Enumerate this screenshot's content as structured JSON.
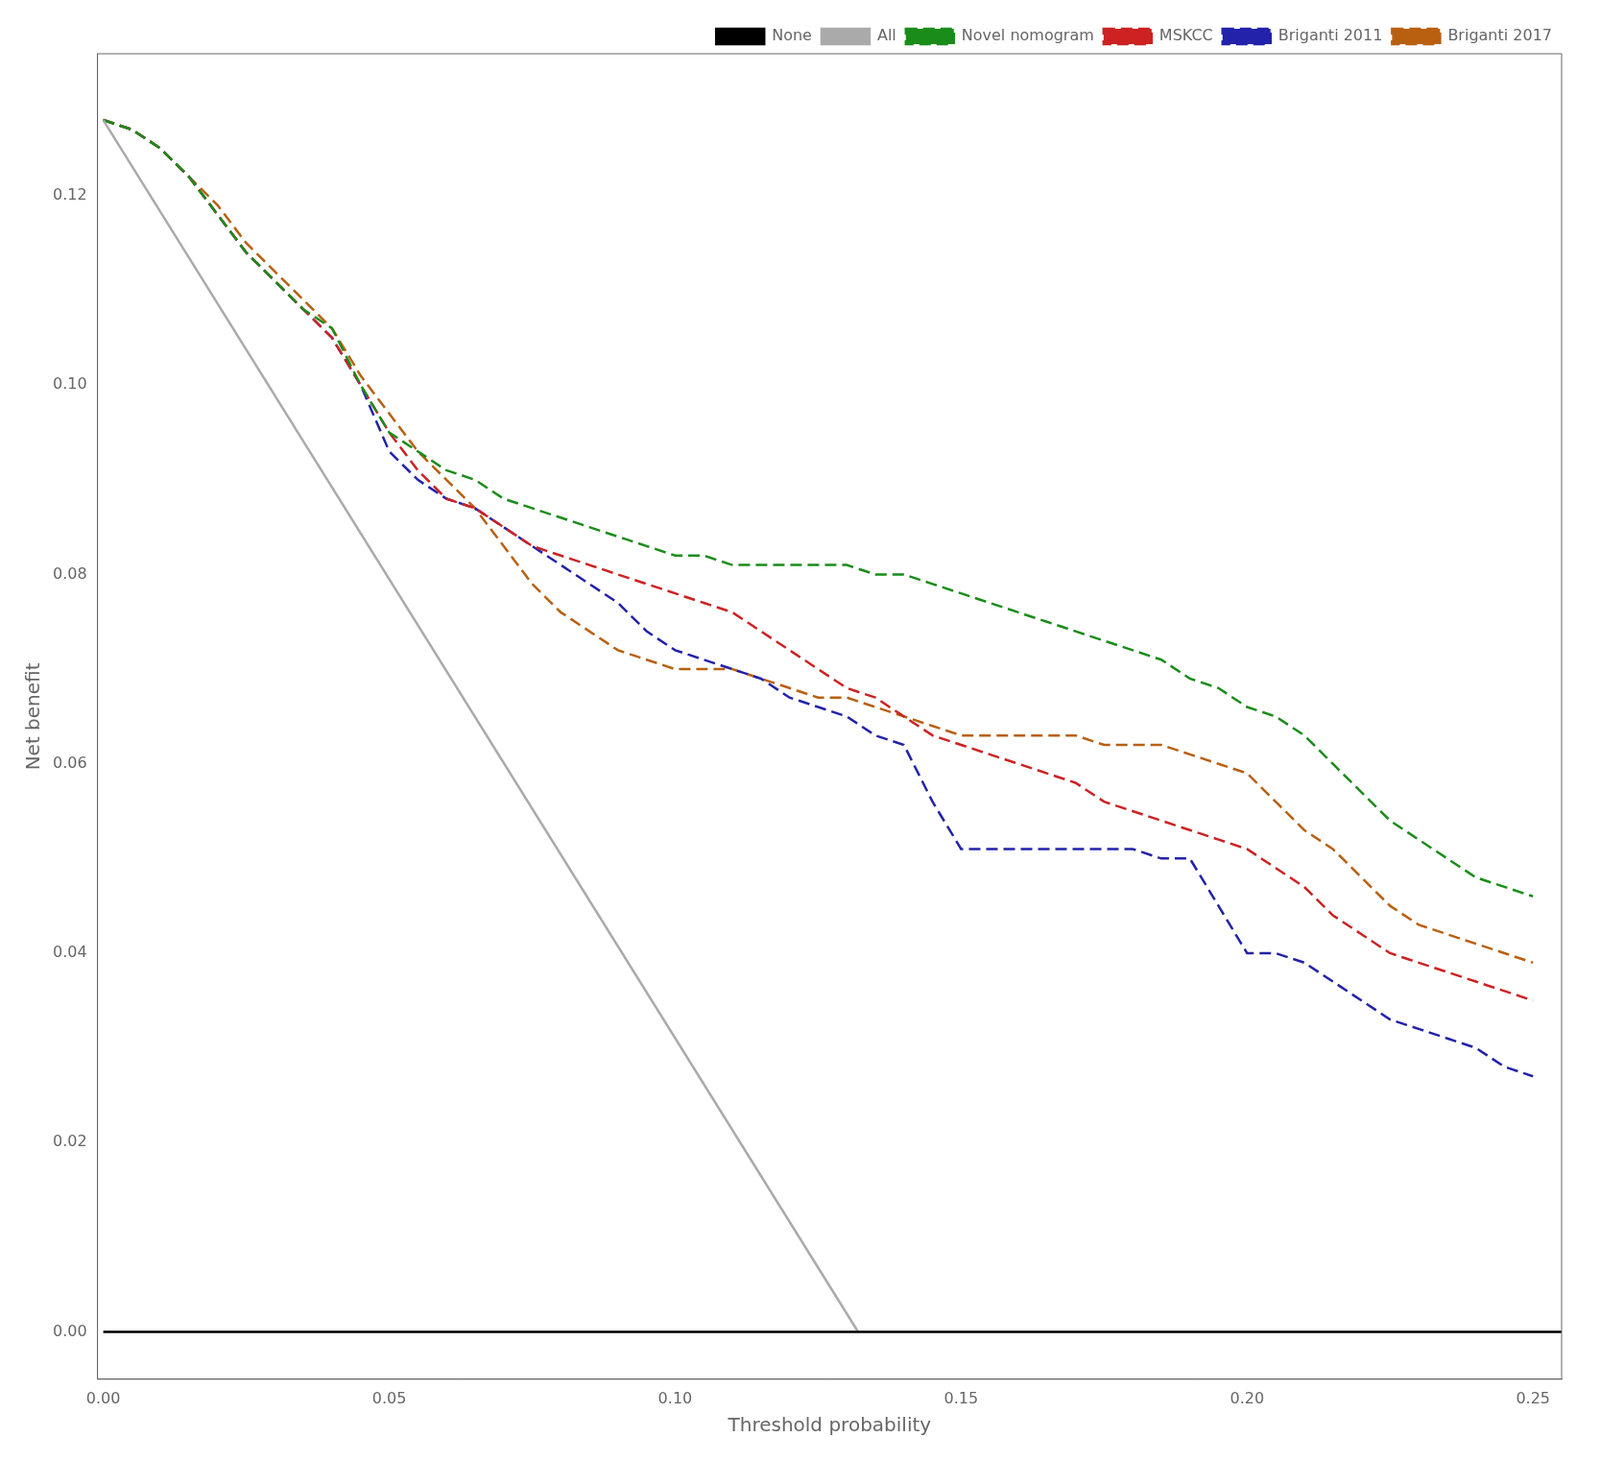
{
  "chart_data": {
    "type": "line",
    "xlabel": "Threshold probability",
    "ylabel": "Net benefit",
    "xlim": [
      -0.001,
      0.255
    ],
    "ylim": [
      -0.005,
      0.135
    ],
    "xticks": [
      {
        "value": 0.0,
        "label": "0.00"
      },
      {
        "value": 0.05,
        "label": "0.05"
      },
      {
        "value": 0.1,
        "label": "0.10"
      },
      {
        "value": 0.15,
        "label": "0.15"
      },
      {
        "value": 0.2,
        "label": "0.20"
      },
      {
        "value": 0.25,
        "label": "0.25"
      }
    ],
    "yticks": [
      {
        "value": 0.0,
        "label": "0.00"
      },
      {
        "value": 0.02,
        "label": "0.02"
      },
      {
        "value": 0.04,
        "label": "0.04"
      },
      {
        "value": 0.06,
        "label": "0.06"
      },
      {
        "value": 0.08,
        "label": "0.08"
      },
      {
        "value": 0.1,
        "label": "0.10"
      },
      {
        "value": 0.12,
        "label": "0.12"
      }
    ],
    "grid": false,
    "legend": "upper right",
    "series": [
      {
        "name": "None",
        "color": "#000000",
        "line_style": "solid",
        "x": [
          0.0,
          0.255
        ],
        "values": [
          0.0,
          0.0
        ]
      },
      {
        "name": "All",
        "color": "#aaaaaa",
        "line_style": "solid",
        "x": [
          0.0,
          0.132
        ],
        "values": [
          0.128,
          0.0
        ]
      },
      {
        "name": "Novel nomogram",
        "color": "#1a8c1a",
        "line_style": "dashed",
        "x": [
          0.0,
          0.005,
          0.01,
          0.015,
          0.02,
          0.025,
          0.03,
          0.035,
          0.04,
          0.045,
          0.05,
          0.055,
          0.06,
          0.065,
          0.07,
          0.075,
          0.08,
          0.085,
          0.09,
          0.095,
          0.1,
          0.105,
          0.11,
          0.115,
          0.12,
          0.125,
          0.13,
          0.135,
          0.14,
          0.145,
          0.15,
          0.155,
          0.16,
          0.165,
          0.17,
          0.175,
          0.18,
          0.185,
          0.19,
          0.195,
          0.2,
          0.205,
          0.21,
          0.215,
          0.22,
          0.225,
          0.23,
          0.235,
          0.24,
          0.245,
          0.25
        ],
        "values": [
          0.128,
          0.127,
          0.125,
          0.122,
          0.118,
          0.114,
          0.111,
          0.108,
          0.106,
          0.1,
          0.095,
          0.093,
          0.091,
          0.09,
          0.088,
          0.087,
          0.086,
          0.085,
          0.084,
          0.083,
          0.082,
          0.082,
          0.081,
          0.081,
          0.081,
          0.081,
          0.081,
          0.08,
          0.08,
          0.079,
          0.078,
          0.077,
          0.076,
          0.075,
          0.074,
          0.073,
          0.072,
          0.071,
          0.069,
          0.068,
          0.066,
          0.065,
          0.063,
          0.06,
          0.057,
          0.054,
          0.052,
          0.05,
          0.048,
          0.047,
          0.046
        ]
      },
      {
        "name": "MSKCC",
        "color": "#cc2222",
        "line_style": "dashed",
        "x": [
          0.0,
          0.005,
          0.01,
          0.015,
          0.02,
          0.025,
          0.03,
          0.035,
          0.04,
          0.045,
          0.05,
          0.055,
          0.06,
          0.065,
          0.07,
          0.075,
          0.08,
          0.085,
          0.09,
          0.095,
          0.1,
          0.105,
          0.11,
          0.115,
          0.12,
          0.125,
          0.13,
          0.135,
          0.14,
          0.145,
          0.15,
          0.155,
          0.16,
          0.165,
          0.17,
          0.175,
          0.18,
          0.185,
          0.19,
          0.195,
          0.2,
          0.205,
          0.21,
          0.215,
          0.22,
          0.225,
          0.23,
          0.235,
          0.24,
          0.245,
          0.25
        ],
        "values": [
          0.128,
          0.127,
          0.125,
          0.122,
          0.118,
          0.114,
          0.111,
          0.108,
          0.105,
          0.1,
          0.095,
          0.091,
          0.088,
          0.087,
          0.085,
          0.083,
          0.082,
          0.081,
          0.08,
          0.079,
          0.078,
          0.077,
          0.076,
          0.074,
          0.072,
          0.07,
          0.068,
          0.067,
          0.065,
          0.063,
          0.062,
          0.061,
          0.06,
          0.059,
          0.058,
          0.056,
          0.055,
          0.054,
          0.053,
          0.052,
          0.051,
          0.049,
          0.047,
          0.044,
          0.042,
          0.04,
          0.039,
          0.038,
          0.037,
          0.036,
          0.035
        ]
      },
      {
        "name": "Briganti 2011",
        "color": "#2222aa",
        "line_style": "dashed",
        "x": [
          0.0,
          0.005,
          0.01,
          0.015,
          0.02,
          0.025,
          0.03,
          0.035,
          0.04,
          0.045,
          0.05,
          0.055,
          0.06,
          0.065,
          0.07,
          0.075,
          0.08,
          0.085,
          0.09,
          0.095,
          0.1,
          0.105,
          0.11,
          0.115,
          0.12,
          0.125,
          0.13,
          0.135,
          0.14,
          0.145,
          0.15,
          0.155,
          0.16,
          0.165,
          0.17,
          0.175,
          0.18,
          0.185,
          0.19,
          0.195,
          0.2,
          0.205,
          0.21,
          0.215,
          0.22,
          0.225,
          0.23,
          0.235,
          0.24,
          0.245,
          0.25
        ],
        "values": [
          0.128,
          0.127,
          0.125,
          0.122,
          0.118,
          0.114,
          0.111,
          0.108,
          0.105,
          0.1,
          0.093,
          0.09,
          0.088,
          0.087,
          0.085,
          0.083,
          0.081,
          0.079,
          0.077,
          0.074,
          0.072,
          0.071,
          0.07,
          0.069,
          0.067,
          0.066,
          0.065,
          0.063,
          0.062,
          0.056,
          0.051,
          0.051,
          0.051,
          0.051,
          0.051,
          0.051,
          0.051,
          0.05,
          0.05,
          0.045,
          0.04,
          0.04,
          0.039,
          0.037,
          0.035,
          0.033,
          0.032,
          0.031,
          0.03,
          0.028,
          0.027
        ]
      },
      {
        "name": "Briganti 2017",
        "color": "#b86010",
        "line_style": "dashed",
        "x": [
          0.0,
          0.005,
          0.01,
          0.015,
          0.02,
          0.025,
          0.03,
          0.035,
          0.04,
          0.045,
          0.05,
          0.055,
          0.06,
          0.065,
          0.07,
          0.075,
          0.08,
          0.085,
          0.09,
          0.095,
          0.1,
          0.105,
          0.11,
          0.115,
          0.12,
          0.125,
          0.13,
          0.135,
          0.14,
          0.145,
          0.15,
          0.155,
          0.16,
          0.165,
          0.17,
          0.175,
          0.18,
          0.185,
          0.19,
          0.195,
          0.2,
          0.205,
          0.21,
          0.215,
          0.22,
          0.225,
          0.23,
          0.235,
          0.24,
          0.245,
          0.25
        ],
        "values": [
          0.128,
          0.127,
          0.125,
          0.122,
          0.119,
          0.115,
          0.112,
          0.109,
          0.106,
          0.101,
          0.097,
          0.093,
          0.09,
          0.087,
          0.083,
          0.079,
          0.076,
          0.074,
          0.072,
          0.071,
          0.07,
          0.07,
          0.07,
          0.069,
          0.068,
          0.067,
          0.067,
          0.066,
          0.065,
          0.064,
          0.063,
          0.063,
          0.063,
          0.063,
          0.063,
          0.062,
          0.062,
          0.062,
          0.061,
          0.06,
          0.059,
          0.056,
          0.053,
          0.051,
          0.048,
          0.045,
          0.043,
          0.042,
          0.041,
          0.04,
          0.039
        ]
      }
    ]
  }
}
